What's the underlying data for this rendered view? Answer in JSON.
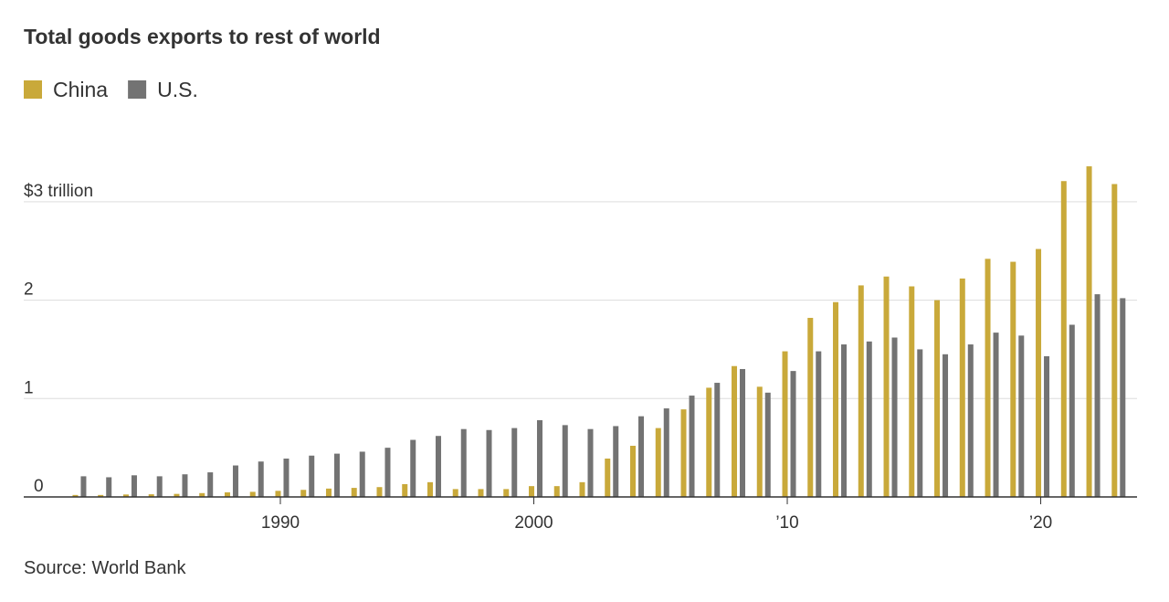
{
  "chart_data": {
    "type": "bar",
    "title": "Total goods exports to rest of world",
    "source": "Source: World Bank",
    "x": [
      1982,
      1983,
      1984,
      1985,
      1986,
      1987,
      1988,
      1989,
      1990,
      1991,
      1992,
      1993,
      1994,
      1995,
      1996,
      1997,
      1998,
      1999,
      2000,
      2001,
      2002,
      2003,
      2004,
      2005,
      2006,
      2007,
      2008,
      2009,
      2010,
      2011,
      2012,
      2013,
      2014,
      2015,
      2016,
      2017,
      2018,
      2019,
      2020,
      2021,
      2022,
      2023
    ],
    "series": [
      {
        "name": "China",
        "color": "#c9a93a",
        "values": [
          0.02,
          0.02,
          0.025,
          0.027,
          0.031,
          0.039,
          0.047,
          0.052,
          0.062,
          0.072,
          0.085,
          0.092,
          0.1,
          0.13,
          0.15,
          0.08,
          0.08,
          0.08,
          0.11,
          0.11,
          0.15,
          0.39,
          0.52,
          0.7,
          0.89,
          1.11,
          1.33,
          1.12,
          1.48,
          1.82,
          1.98,
          2.15,
          2.24,
          2.14,
          2.0,
          2.22,
          2.42,
          2.39,
          2.52,
          3.21,
          3.36,
          3.18
        ]
      },
      {
        "name": "U.S.",
        "color": "#737373",
        "values": [
          0.21,
          0.2,
          0.22,
          0.21,
          0.23,
          0.25,
          0.32,
          0.36,
          0.39,
          0.42,
          0.44,
          0.46,
          0.5,
          0.58,
          0.62,
          0.69,
          0.68,
          0.7,
          0.78,
          0.73,
          0.69,
          0.72,
          0.82,
          0.9,
          1.03,
          1.16,
          1.3,
          1.06,
          1.28,
          1.48,
          1.55,
          1.58,
          1.62,
          1.5,
          1.45,
          1.55,
          1.67,
          1.64,
          1.43,
          1.75,
          2.06,
          2.02
        ]
      }
    ],
    "xlim": [
      1980.2,
      2023.8
    ],
    "xticks": [
      1990,
      2000,
      {
        "value": 2010,
        "label": "’10"
      },
      {
        "value": 2020,
        "label": "’20"
      }
    ],
    "ylim": [
      0,
      3.5
    ],
    "yticks": [
      0,
      1,
      2,
      {
        "value": 3,
        "label": "$3 trillion"
      }
    ],
    "grid": true
  }
}
